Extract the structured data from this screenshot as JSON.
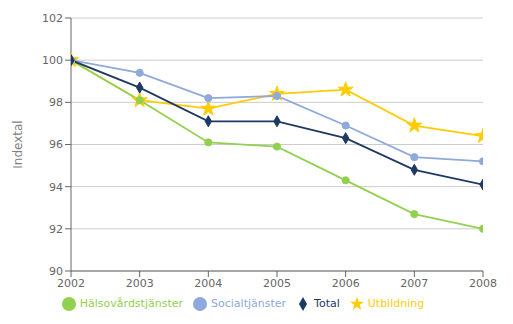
{
  "chart_data": {
    "type": "line",
    "ylabel": "Indextal",
    "x": [
      2002,
      2003,
      2004,
      2005,
      2006,
      2007,
      2008
    ],
    "xlim": [
      2002,
      2008
    ],
    "xticks": [
      2002,
      2003,
      2004,
      2005,
      2006,
      2007,
      2008
    ],
    "ylim": [
      90,
      102
    ],
    "yticks": [
      90,
      92,
      94,
      96,
      98,
      100,
      102
    ],
    "grid": "y",
    "legend": "bottom",
    "series": [
      {
        "name": "Utbildning",
        "color": "#FFCC00",
        "marker": "star",
        "line_style": "solid",
        "values": [
          100.0,
          98.1,
          97.7,
          98.4,
          98.6,
          96.9,
          96.4
        ]
      },
      {
        "name": "Hälsovårdstjänster",
        "color": "#92D050",
        "marker": "circle",
        "line_style": "solid",
        "values": [
          100.0,
          98.1,
          96.1,
          95.9,
          94.3,
          92.7,
          92.0
        ]
      },
      {
        "name": "Socialtjänster",
        "color": "#8EA9DB",
        "marker": "circle",
        "line_style": "solid",
        "values": [
          100.0,
          99.4,
          98.2,
          98.3,
          96.9,
          95.4,
          95.2
        ]
      },
      {
        "name": "Total",
        "color": "#1F3864",
        "marker": "diamond",
        "line_style": "solid",
        "values": [
          100.0,
          98.7,
          97.1,
          97.1,
          96.3,
          94.8,
          94.1
        ]
      }
    ]
  }
}
